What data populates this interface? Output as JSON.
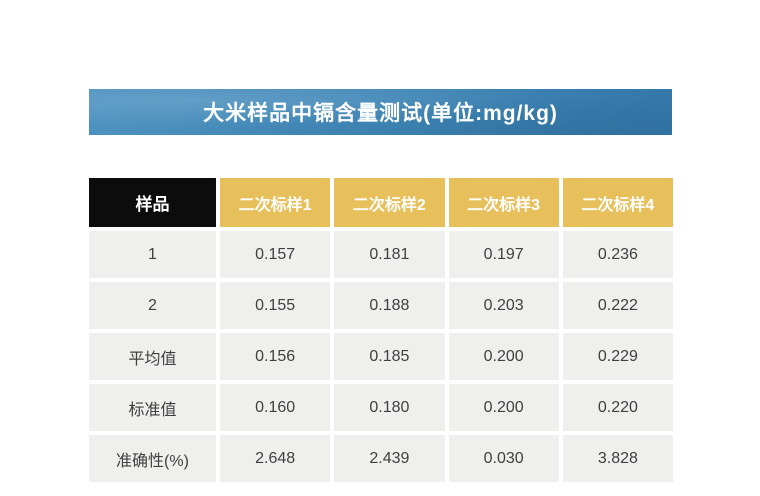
{
  "title": {
    "text": "大米样品中镉含量测试(单位:mg/kg)"
  },
  "colors": {
    "banner_blue_light": "#4d92c0",
    "banner_blue_dark": "#3478a9",
    "header_black": "#0c0c0c",
    "header_gold": "#e7c05c",
    "cell_gray": "#efefee",
    "cell_text": "#3f3f3f",
    "header_text": "#ffffff",
    "page_background": "#ffffff"
  },
  "chart_data": {
    "type": "table",
    "title": "大米样品中镉含量测试(单位:mg/kg)",
    "columns": [
      "样品",
      "二次标样1",
      "二次标样2",
      "二次标样3",
      "二次标样4"
    ],
    "rows": [
      [
        "1",
        "0.157",
        "0.181",
        "0.197",
        "0.236"
      ],
      [
        "2",
        "0.155",
        "0.188",
        "0.203",
        "0.222"
      ],
      [
        "平均值",
        "0.156",
        "0.185",
        "0.200",
        "0.229"
      ],
      [
        "标准值",
        "0.160",
        "0.180",
        "0.200",
        "0.220"
      ],
      [
        "准确性(%)",
        "2.648",
        "2.439",
        "0.030",
        "3.828"
      ]
    ]
  }
}
